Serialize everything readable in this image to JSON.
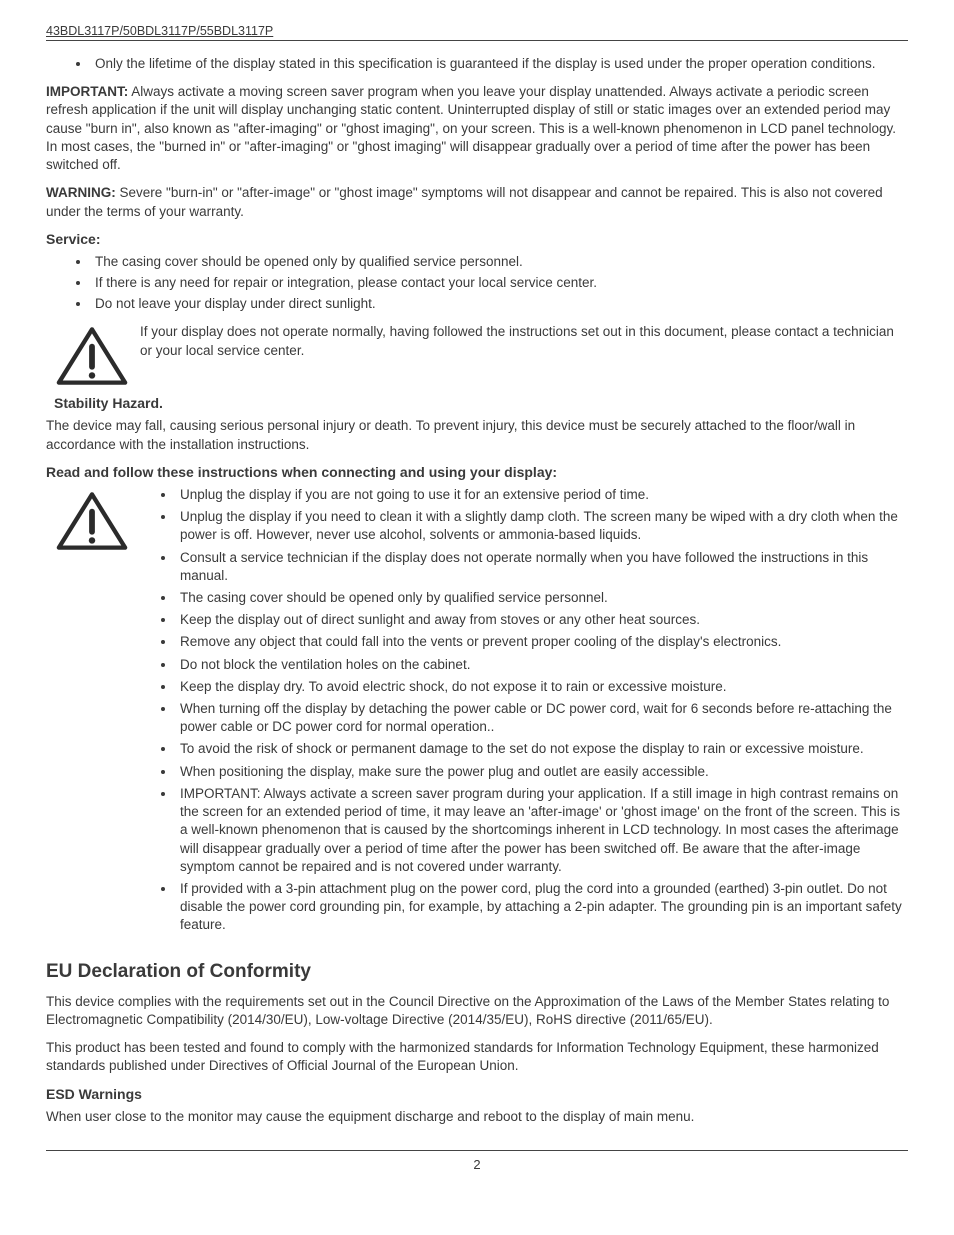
{
  "header": {
    "model": "43BDL3117P/50BDL3117P/55BDL3117P"
  },
  "topBullet": "Only the lifetime of the display stated in this specification is guaranteed if the display is used under the proper operation conditions.",
  "important": {
    "label": "IMPORTANT:",
    "text": " Always activate a moving screen saver program when you leave your display unattended. Always activate a periodic screen refresh application if the unit will display unchanging static content. Uninterrupted display of still or static images over an extended period may cause \"burn in\", also known as \"after-imaging\" or \"ghost imaging\", on your screen. This is a well-known phenomenon in LCD panel technology. In most cases, the \"burned in\" or \"after-imaging\" or \"ghost imaging\" will disappear gradually over a period of time after the power has been switched off."
  },
  "warning": {
    "label": "WARNING:",
    "text": " Severe \"burn-in\" or \"after-image\" or \"ghost image\" symptoms will not disappear and cannot be repaired. This is also not covered under the terms of your warranty."
  },
  "service": {
    "heading": "Service:",
    "items": [
      "The casing cover should be opened only by qualified service personnel.",
      "If there is any need for repair or integration, please contact your local service center.",
      "Do not leave your display under direct sunlight."
    ],
    "noteText": "If your display does not operate normally, having followed the instructions set out in this document, please contact a technician or your local service center."
  },
  "stability": {
    "heading": "Stability Hazard.",
    "text": "The device may fall, causing serious personal injury or death. To prevent injury, this device must be  securely attached to the floor/wall in accordance with the installation instructions."
  },
  "instructions": {
    "heading": "Read and follow these instructions when connecting and using your display:",
    "items": [
      "Unplug the display if you are not going to use it for an extensive period of time.",
      "Unplug the display if you need to clean it with a slightly damp cloth. The screen many be wiped with a dry cloth when the power is off. However, never use alcohol, solvents or ammonia-based liquids.",
      "Consult a service technician if the display does not operate normally when you have followed the instructions in this manual.",
      "The casing cover should be opened only by qualified service personnel.",
      "Keep the display out of direct sunlight and away from stoves or any other heat sources.",
      "Remove any object that could fall into the vents or prevent proper cooling of the display's electronics.",
      "Do not block the ventilation holes on the cabinet.",
      "Keep the display dry. To avoid electric shock, do not expose it to rain or excessive moisture.",
      "When turning off the display by detaching the power cable or DC power cord, wait for 6 seconds before re-attaching the power cable or DC power cord for normal operation..",
      "To avoid the risk of shock or permanent damage to the set do not expose the display to rain or excessive moisture.",
      "When positioning the display, make sure the power plug and outlet are easily accessible.",
      "IMPORTANT: Always activate a screen saver program during your application. If a still image in high contrast remains on the screen for an extended period of time, it may leave an 'after-image' or 'ghost image' on the front of the screen. This is a well-known phenomenon that is caused by the shortcomings inherent in LCD technology. In most cases the afterimage will disappear gradually over a period of time after the power has been switched off. Be aware that the after-image symptom cannot be repaired and is not covered under warranty.",
      "If provided with a 3-pin attachment plug on the power cord, plug the cord into a grounded (earthed) 3-pin outlet. Do not disable the power cord grounding pin, for example, by attaching a 2-pin adapter. The grounding pin is an important safety feature."
    ]
  },
  "eu": {
    "heading": "EU Declaration of Conformity",
    "p1": "This device complies with the requirements set out in the Council Directive on the Approximation of the Laws of the Member States relating to Electromagnetic Compatibility (2014/30/EU), Low-voltage Directive (2014/35/EU), RoHS directive (2011/65/EU).",
    "p2": "This product has been tested and found to comply with the harmonized standards for Information Technology Equipment, these harmonized standards published under Directives of Official Journal of the European Union."
  },
  "esd": {
    "heading": "ESD Warnings",
    "text": "When user close to the monitor may cause the equipment discharge and reboot to the display of main menu."
  },
  "footer": {
    "pageNum": "2"
  },
  "style": {
    "textColor": "#3a3a3a",
    "background": "#ffffff",
    "borderColor": "#444444",
    "bodyFontSize": 13.5,
    "subHeadFontSize": 14,
    "sectionFontSize": 19,
    "iconStroke": "#2b2b2b",
    "iconStrokeWidth": 4
  }
}
